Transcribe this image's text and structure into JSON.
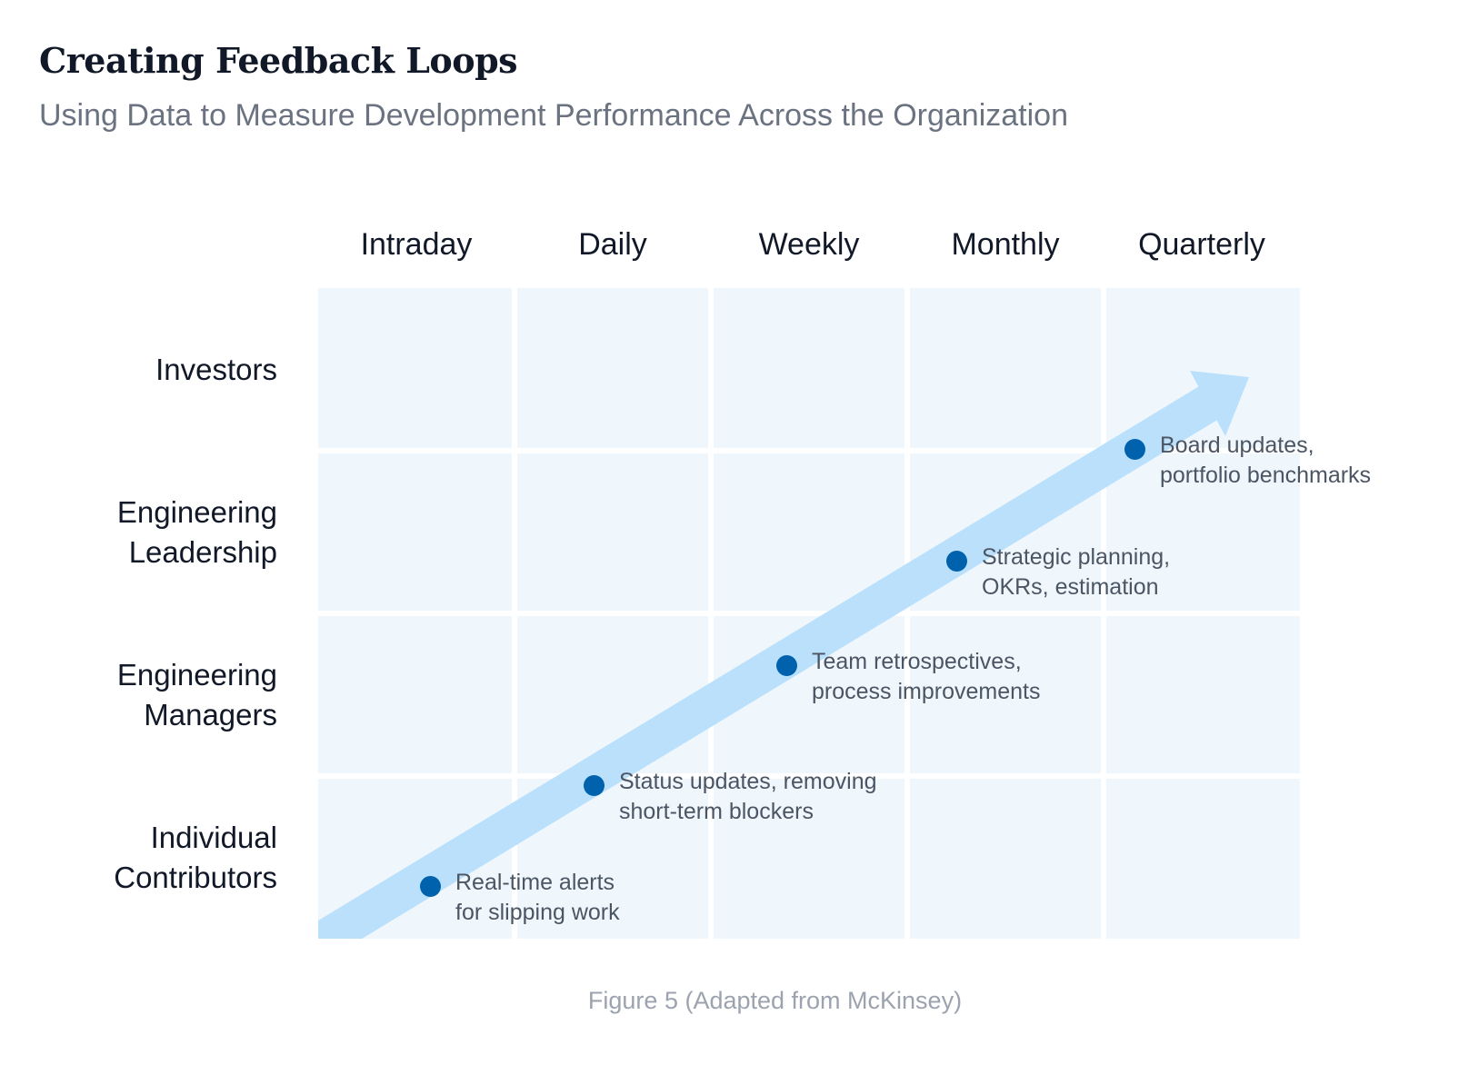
{
  "title": "Creating Feedback Loops",
  "subtitle": "Using Data to Measure Development Performance Across the Organization",
  "columns": [
    "Intraday",
    "Daily",
    "Weekly",
    "Monthly",
    "Quarterly"
  ],
  "rows": [
    {
      "line1": "Investors",
      "line2": ""
    },
    {
      "line1": "Engineering",
      "line2": "Leadership"
    },
    {
      "line1": "Engineering",
      "line2": "Managers"
    },
    {
      "line1": "Individual",
      "line2": "Contributors"
    }
  ],
  "points": [
    {
      "line1": "Real-time alerts",
      "line2": "for slipping work"
    },
    {
      "line1": "Status updates, removing",
      "line2": "short-term blockers"
    },
    {
      "line1": "Team retrospectives,",
      "line2": "process improvements"
    },
    {
      "line1": "Strategic planning,",
      "line2": "OKRs, estimation"
    },
    {
      "line1": "Board updates,",
      "line2": "portfolio benchmarks"
    }
  ],
  "caption": "Figure 5 (Adapted from McKinsey)",
  "colors": {
    "cell": "#eff7fd",
    "arrow": "#bae0fb",
    "dot": "#0062ad"
  }
}
